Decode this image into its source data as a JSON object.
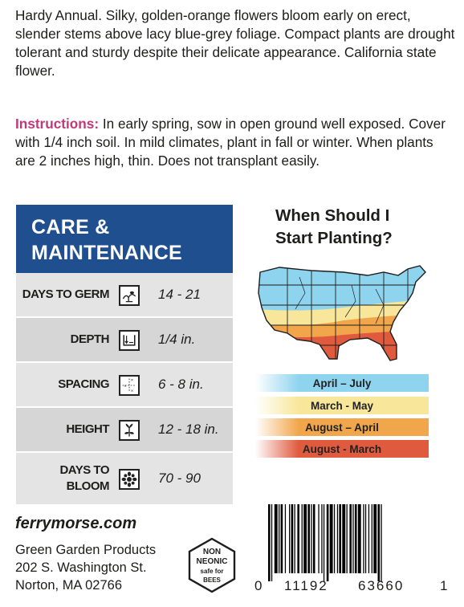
{
  "description": "Hardy Annual. Silky, golden-orange flowers bloom early on erect, slender stems above lacy blue-grey foliage. Compact plants are drought tolerant and sturdy despite their delicate appearance. California state flower.",
  "instructions": {
    "label": "Instructions:",
    "text": " In early spring, sow in open ground well exposed. Cover with 1/4 inch soil. In mild climates, plant in fall or winter. When plants are 2 inches high, thin. Does not transplant easily."
  },
  "care": {
    "title_line1": "CARE &",
    "title_line2": "MAINTENANCE",
    "rows": [
      {
        "label": "DAYS TO GERM",
        "value": "14 - 21",
        "icon": "germination-icon"
      },
      {
        "label": "DEPTH",
        "value": "1/4 in.",
        "icon": "depth-icon"
      },
      {
        "label": "SPACING",
        "value": "6 - 8 in.",
        "icon": "spacing-icon"
      },
      {
        "label": "HEIGHT",
        "value": "12 - 18 in.",
        "icon": "height-icon"
      },
      {
        "label_line1": "DAYS TO",
        "label_line2": "BLOOM",
        "value": "70 - 90",
        "icon": "flower-icon"
      }
    ]
  },
  "planting": {
    "title_line1": "When Should I",
    "title_line2": "Start Planting?",
    "zones": [
      {
        "label": "April – July",
        "color": "#8fd4ef"
      },
      {
        "label": "March - May",
        "color": "#f8e79a"
      },
      {
        "label": "August – April",
        "color": "#f2a64b"
      },
      {
        "label": "August - March",
        "color": "#e05a3e"
      }
    ]
  },
  "footer": {
    "website": "ferrymorse.com",
    "company": "Green Garden Products",
    "street": "202 S. Washington St.",
    "city": "Norton, MA 02766",
    "badge_line1": "NON",
    "badge_line2": "NEONIC",
    "badge_line3": "safe for",
    "badge_line4": "BEES",
    "barcode_left": "0",
    "barcode_mid": "11192",
    "barcode_right": "63660",
    "barcode_check": "1"
  }
}
